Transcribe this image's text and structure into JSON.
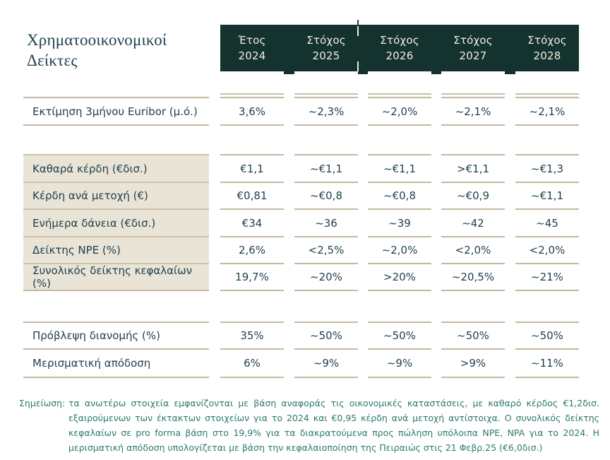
{
  "title": {
    "line1": "Χρηματοοικονομικοί",
    "line2": "Δείκτες"
  },
  "table": {
    "columns": [
      {
        "kind": "Έτος",
        "year": "2024"
      },
      {
        "kind": "Στόχος",
        "year": "2025"
      },
      {
        "kind": "Στόχος",
        "year": "2026"
      },
      {
        "kind": "Στόχος",
        "year": "2027"
      },
      {
        "kind": "Στόχος",
        "year": "2028"
      }
    ],
    "rows": [
      {
        "label": "Εκτίμηση 3μήνου Euribor (μ.ό.)",
        "values": [
          "3,6%",
          "~2,3%",
          "~2,0%",
          "~2,1%",
          "~2,1%"
        ],
        "group": "macro"
      },
      {
        "label": "Καθαρά κέρδη (€δισ.)",
        "values": [
          "€1,1",
          "~€1,1",
          "~€1,1",
          ">€1,1",
          "~€1,3"
        ],
        "group": "core"
      },
      {
        "label": "Κέρδη ανά μετοχή (€)",
        "values": [
          "€0,81",
          "~€0,8",
          "~€0,8",
          "~€0,9",
          "~€1,1"
        ],
        "group": "core"
      },
      {
        "label": "Ενήμερα δάνεια (€δισ.)",
        "values": [
          "€34",
          "~36",
          "~39",
          "~42",
          "~45"
        ],
        "group": "core"
      },
      {
        "label": "Δείκτης NPE (%)",
        "values": [
          "2,6%",
          "<2,5%",
          "~2,0%",
          "<2,0%",
          "<2,0%"
        ],
        "group": "core"
      },
      {
        "label": "Συνολικός δείκτης κεφαλαίων (%)",
        "values": [
          "19,7%",
          "~20%",
          ">20%",
          "~20,5%",
          "~21%"
        ],
        "group": "core"
      },
      {
        "label": "Πρόβλεψη διανομής (%)",
        "values": [
          "35%",
          "~50%",
          "~50%",
          "~50%",
          "~50%"
        ],
        "group": "distribution"
      },
      {
        "label": "Μερισματική απόδοση",
        "values": [
          "6%",
          "~9%",
          "~9%",
          ">9%",
          "~11%"
        ],
        "group": "distribution"
      }
    ]
  },
  "footnote": {
    "label": "Σημείωση:",
    "text": "τα ανωτέρω στοιχεία εμφανίζονται με βάση αναφοράς τις οικονομικές καταστάσεις, με καθαρό κέρδος €1,2δισ. εξαιρούμενων των έκτακτων στοιχείων για το 2024 και €0,95 κέρδη ανά μετοχή αντίστοιχα. Ο συνολικός δείκτης κεφαλαίων σε pro forma βάση στο 19,9% για τα διακρατούμενα προς πώληση υπόλοιπα NPE, NPA για το 2024. Η μερισματική απόδοση υπολογίζεται με βάση την κεφαλαιοποίηση της Πειραιώς στις 21 Φεβρ.25 (€6,0δισ.)"
  },
  "colors": {
    "header_bg": "#14332e",
    "header_text": "#f1ede0",
    "row_hairline": "#c3b99f",
    "label_block_bg": "#e9e4d6",
    "body_text": "#1f3e4d",
    "title_text": "#1f4050",
    "footnote_text": "#2b7a6f"
  }
}
